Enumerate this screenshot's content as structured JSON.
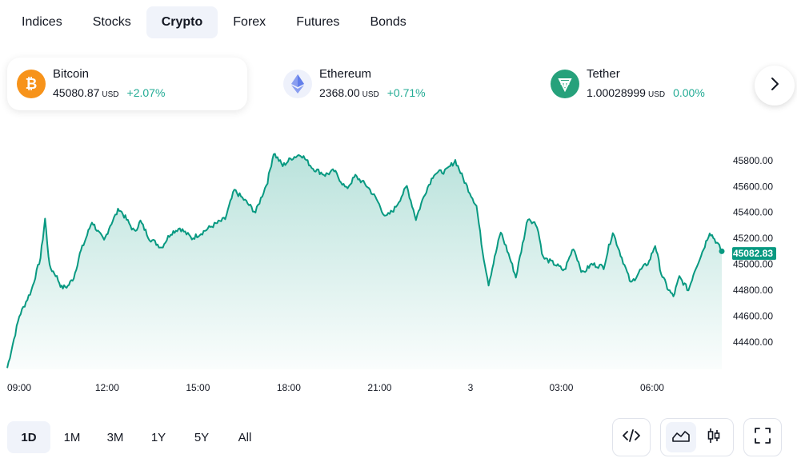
{
  "tabs": [
    {
      "label": "Indices",
      "active": false
    },
    {
      "label": "Stocks",
      "active": false
    },
    {
      "label": "Crypto",
      "active": true
    },
    {
      "label": "Forex",
      "active": false
    },
    {
      "label": "Futures",
      "active": false
    },
    {
      "label": "Bonds",
      "active": false
    }
  ],
  "coins": [
    {
      "name": "Bitcoin",
      "price": "45080.87",
      "unit": "USD",
      "change": "+2.07%",
      "icon": "bitcoin-icon",
      "color": "#f7931a",
      "change_color": "#22ab94",
      "active": true
    },
    {
      "name": "Ethereum",
      "price": "2368.00",
      "unit": "USD",
      "change": "+0.71%",
      "icon": "ethereum-icon",
      "color": "#627eea",
      "change_color": "#22ab94",
      "active": false
    },
    {
      "name": "Tether",
      "price": "1.00028999",
      "unit": "USD",
      "change": "0.00%",
      "icon": "tether-icon",
      "color": "#26a17b",
      "change_color": "#22ab94",
      "active": false
    }
  ],
  "ranges": [
    {
      "label": "1D",
      "active": true
    },
    {
      "label": "1M",
      "active": false
    },
    {
      "label": "3M",
      "active": false
    },
    {
      "label": "1Y",
      "active": false
    },
    {
      "label": "5Y",
      "active": false
    },
    {
      "label": "All",
      "active": false
    }
  ],
  "colors": {
    "line": "#089981",
    "text": "#131722",
    "axis_text": "#131722"
  },
  "chart_data": {
    "type": "area",
    "title": "",
    "xlabel": "",
    "ylabel": "",
    "x_tick_labels": [
      "09:00",
      "12:00",
      "15:00",
      "18:00",
      "21:00",
      "3",
      "03:00",
      "06:00"
    ],
    "y_tick_labels": [
      "45800.00",
      "45600.00",
      "45400.00",
      "45200.00",
      "45000.00",
      "44800.00",
      "44600.00",
      "44400.00"
    ],
    "ylim": [
      44190,
      45990
    ],
    "last_value": "45082.83",
    "grid": false,
    "x_unit": "hours from 09:00",
    "series": [
      {
        "values": [
          [
            -0.3,
            44200
          ],
          [
            0.1,
            44600
          ],
          [
            0.5,
            44800
          ],
          [
            0.8,
            45050
          ],
          [
            0.95,
            45350
          ],
          [
            1.1,
            44980
          ],
          [
            1.3,
            44920
          ],
          [
            1.5,
            44820
          ],
          [
            1.7,
            44830
          ],
          [
            1.9,
            44900
          ],
          [
            2.1,
            45080
          ],
          [
            2.3,
            45200
          ],
          [
            2.5,
            45330
          ],
          [
            2.7,
            45250
          ],
          [
            2.9,
            45180
          ],
          [
            3.1,
            45300
          ],
          [
            3.4,
            45430
          ],
          [
            3.6,
            45360
          ],
          [
            3.9,
            45250
          ],
          [
            4.1,
            45330
          ],
          [
            4.4,
            45200
          ],
          [
            4.8,
            45130
          ],
          [
            5.1,
            45240
          ],
          [
            5.4,
            45280
          ],
          [
            5.8,
            45200
          ],
          [
            6.1,
            45240
          ],
          [
            6.5,
            45300
          ],
          [
            6.9,
            45350
          ],
          [
            7.2,
            45570
          ],
          [
            7.6,
            45480
          ],
          [
            7.9,
            45400
          ],
          [
            8.3,
            45640
          ],
          [
            8.5,
            45860
          ],
          [
            8.8,
            45760
          ],
          [
            9.1,
            45820
          ],
          [
            9.4,
            45850
          ],
          [
            9.8,
            45740
          ],
          [
            10.2,
            45690
          ],
          [
            10.5,
            45720
          ],
          [
            10.9,
            45580
          ],
          [
            11.2,
            45680
          ],
          [
            11.6,
            45600
          ],
          [
            11.9,
            45500
          ],
          [
            12.2,
            45360
          ],
          [
            12.5,
            45430
          ],
          [
            12.9,
            45600
          ],
          [
            13.2,
            45350
          ],
          [
            13.5,
            45550
          ],
          [
            13.8,
            45700
          ],
          [
            14.2,
            45720
          ],
          [
            14.5,
            45800
          ],
          [
            14.8,
            45640
          ],
          [
            15.2,
            45450
          ],
          [
            15.4,
            45100
          ],
          [
            15.6,
            44850
          ],
          [
            15.8,
            45050
          ],
          [
            16.0,
            45250
          ],
          [
            16.3,
            45050
          ],
          [
            16.5,
            44900
          ],
          [
            16.9,
            45360
          ],
          [
            17.2,
            45300
          ],
          [
            17.4,
            45050
          ],
          [
            17.8,
            45000
          ],
          [
            18.1,
            44950
          ],
          [
            18.4,
            45130
          ],
          [
            18.7,
            44930
          ],
          [
            19.0,
            45000
          ],
          [
            19.4,
            44980
          ],
          [
            19.7,
            45250
          ],
          [
            20.0,
            45050
          ],
          [
            20.3,
            44850
          ],
          [
            20.6,
            44950
          ],
          [
            20.9,
            45020
          ],
          [
            21.1,
            45150
          ],
          [
            21.3,
            44930
          ],
          [
            21.5,
            44820
          ],
          [
            21.7,
            44750
          ],
          [
            21.9,
            44900
          ],
          [
            22.2,
            44800
          ],
          [
            22.4,
            44950
          ],
          [
            22.7,
            45120
          ],
          [
            22.9,
            45250
          ],
          [
            23.1,
            45180
          ],
          [
            23.3,
            45100
          ]
        ]
      }
    ]
  }
}
